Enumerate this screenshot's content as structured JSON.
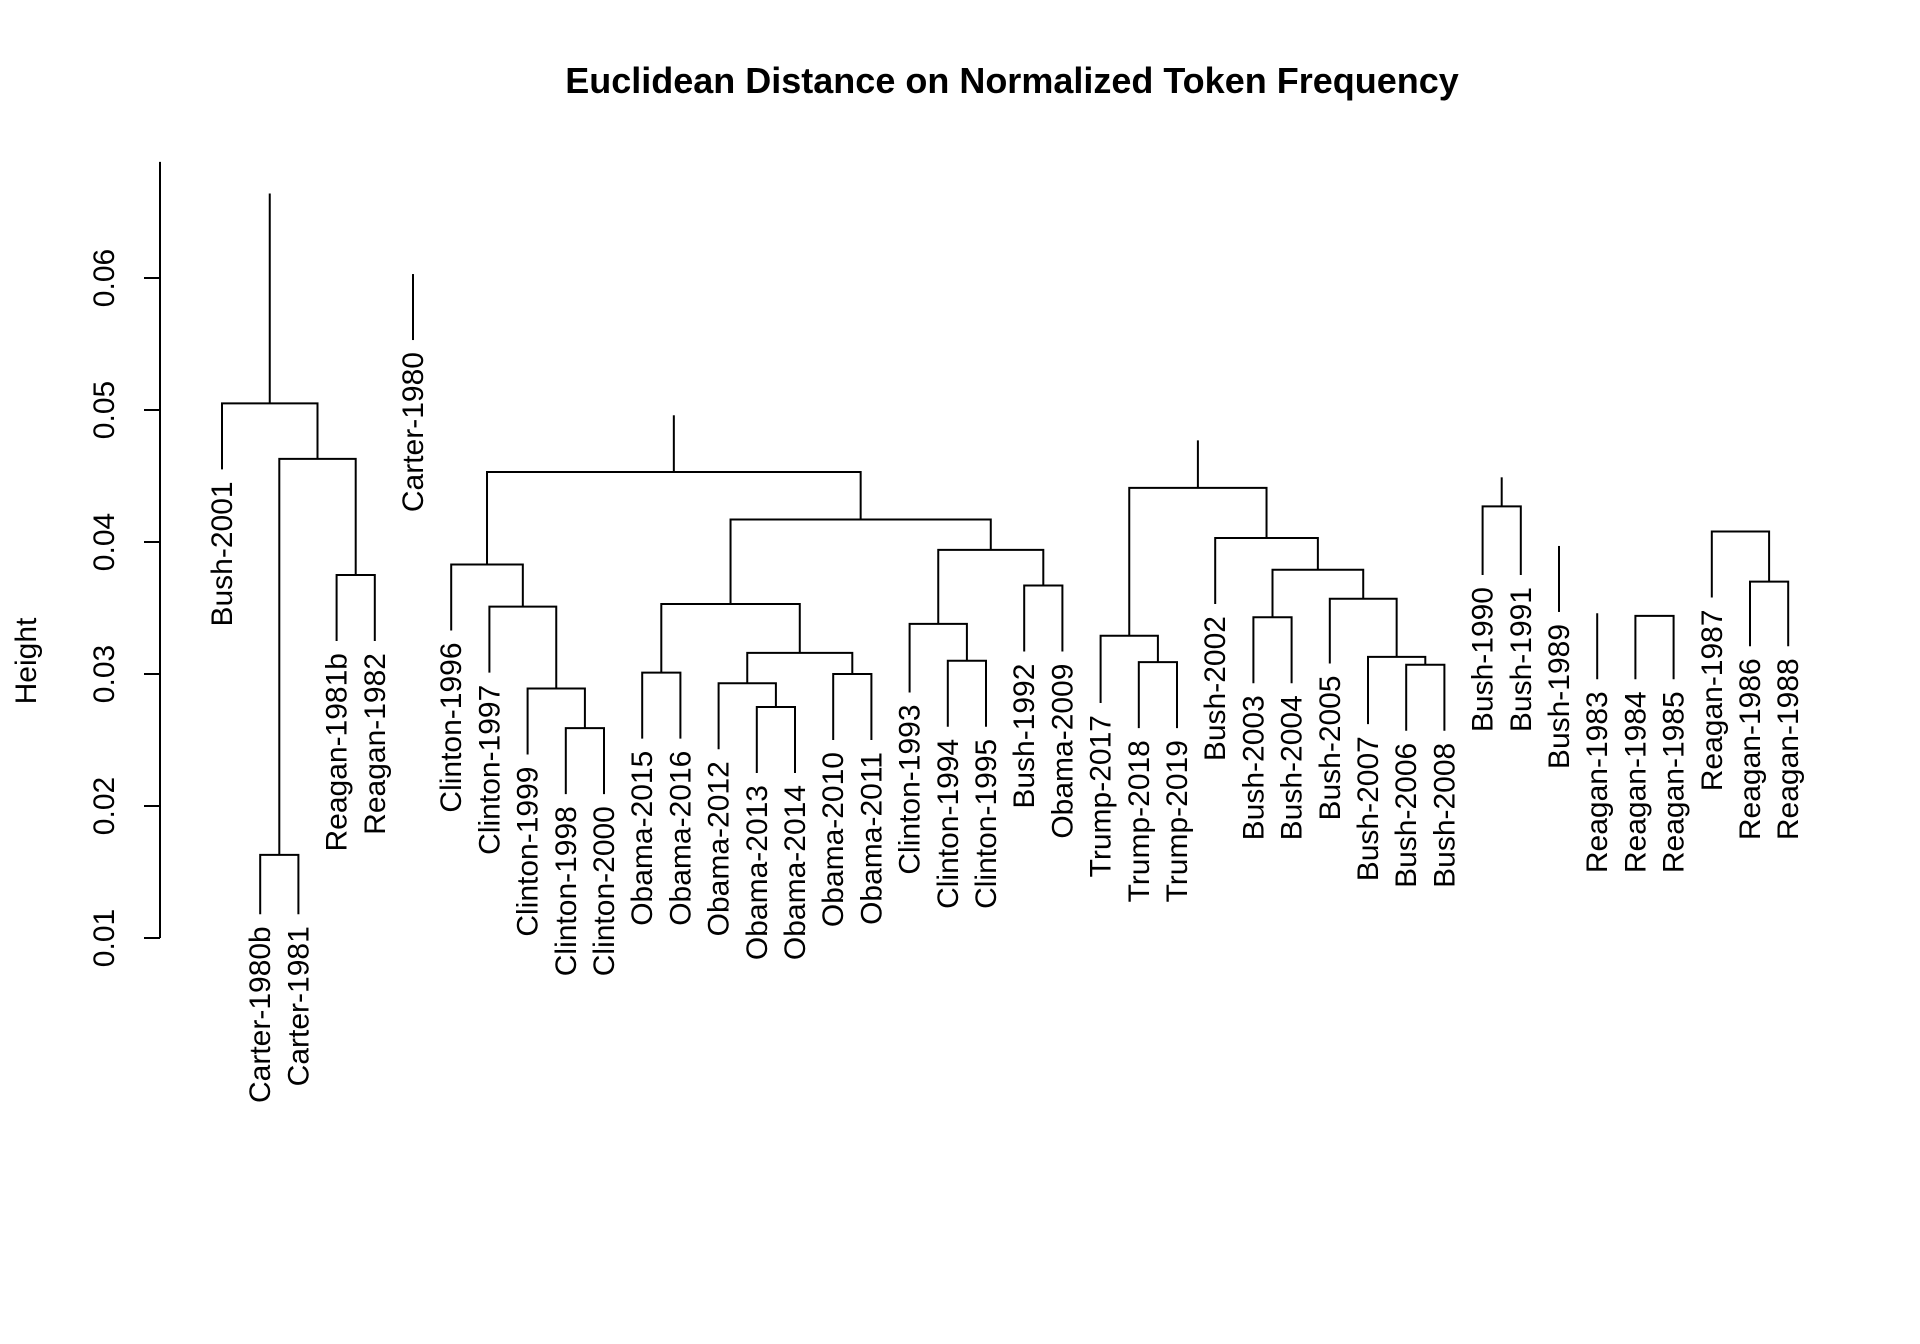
{
  "chart_data": {
    "type": "dendrogram",
    "title": "Euclidean Distance on Normalized Token Frequency",
    "xlabel": "",
    "ylabel": "Height",
    "ylim": [
      0.01,
      0.07
    ],
    "yticks": [
      "0.01",
      "0.02",
      "0.03",
      "0.04",
      "0.05",
      "0.06"
    ],
    "leaves": [
      {
        "label": "Bush-2001",
        "top": 0.0455
      },
      {
        "label": "Carter-1980b",
        "top": 0.0118
      },
      {
        "label": "Carter-1981",
        "top": 0.0118
      },
      {
        "label": "Reagan-1981b",
        "top": 0.0325
      },
      {
        "label": "Reagan-1982",
        "top": 0.0325
      },
      {
        "label": "Carter-1980",
        "top": 0.0553
      },
      {
        "label": "Clinton-1996",
        "top": 0.0333
      },
      {
        "label": "Clinton-1997",
        "top": 0.0301
      },
      {
        "label": "Clinton-1999",
        "top": 0.0239
      },
      {
        "label": "Clinton-1998",
        "top": 0.0209
      },
      {
        "label": "Clinton-2000",
        "top": 0.0209
      },
      {
        "label": "Obama-2015",
        "top": 0.0251
      },
      {
        "label": "Obama-2016",
        "top": 0.0251
      },
      {
        "label": "Obama-2012",
        "top": 0.0243
      },
      {
        "label": "Obama-2013",
        "top": 0.0225
      },
      {
        "label": "Obama-2014",
        "top": 0.0225
      },
      {
        "label": "Obama-2010",
        "top": 0.025
      },
      {
        "label": "Obama-2011",
        "top": 0.025
      },
      {
        "label": "Clinton-1993",
        "top": 0.0286
      },
      {
        "label": "Clinton-1994",
        "top": 0.026
      },
      {
        "label": "Clinton-1995",
        "top": 0.026
      },
      {
        "label": "Bush-1992",
        "top": 0.0317
      },
      {
        "label": "Obama-2009",
        "top": 0.0317
      },
      {
        "label": "Trump-2017",
        "top": 0.0278
      },
      {
        "label": "Trump-2018",
        "top": 0.0259
      },
      {
        "label": "Trump-2019",
        "top": 0.0259
      },
      {
        "label": "Bush-2002",
        "top": 0.0353
      },
      {
        "label": "Bush-2003",
        "top": 0.0293
      },
      {
        "label": "Bush-2004",
        "top": 0.0293
      },
      {
        "label": "Bush-2005",
        "top": 0.0308
      },
      {
        "label": "Bush-2007",
        "top": 0.0262
      },
      {
        "label": "Bush-2006",
        "top": 0.0257
      },
      {
        "label": "Bush-2008",
        "top": 0.0257
      },
      {
        "label": "Bush-1990",
        "top": 0.0375
      },
      {
        "label": "Bush-1991",
        "top": 0.0375
      },
      {
        "label": "Bush-1989",
        "top": 0.0347
      },
      {
        "label": "Reagan-1983",
        "top": 0.0296
      },
      {
        "label": "Reagan-1984",
        "top": 0.0296
      },
      {
        "label": "Reagan-1985",
        "top": 0.0296
      },
      {
        "label": "Reagan-1987",
        "top": 0.0358
      },
      {
        "label": "Reagan-1986",
        "top": 0.0321
      },
      {
        "label": "Reagan-1988",
        "top": 0.0321
      }
    ],
    "merges": [
      {
        "a": [
          1
        ],
        "b": [
          2
        ],
        "height": 0.0163
      },
      {
        "a": [
          3
        ],
        "b": [
          4
        ],
        "height": 0.0375
      },
      {
        "a": [
          1,
          2
        ],
        "b": [
          3,
          4
        ],
        "height": 0.0463
      },
      {
        "a": [
          0
        ],
        "b": [
          1,
          2,
          3,
          4
        ],
        "height": 0.0505
      },
      {
        "a": [
          9
        ],
        "b": [
          10
        ],
        "height": 0.0259
      },
      {
        "a": [
          8
        ],
        "b": [
          9,
          10
        ],
        "height": 0.0289
      },
      {
        "a": [
          7
        ],
        "b": [
          8,
          9,
          10
        ],
        "height": 0.0351
      },
      {
        "a": [
          6
        ],
        "b": [
          7,
          8,
          9,
          10
        ],
        "height": 0.0383
      },
      {
        "a": [
          11
        ],
        "b": [
          12
        ],
        "height": 0.0301
      },
      {
        "a": [
          14
        ],
        "b": [
          15
        ],
        "height": 0.0275
      },
      {
        "a": [
          13
        ],
        "b": [
          14,
          15
        ],
        "height": 0.0293
      },
      {
        "a": [
          16
        ],
        "b": [
          17
        ],
        "height": 0.03
      },
      {
        "a": [
          13,
          14,
          15
        ],
        "b": [
          16,
          17
        ],
        "height": 0.0316
      },
      {
        "a": [
          11,
          12
        ],
        "b": [
          13,
          14,
          15,
          16,
          17
        ],
        "height": 0.0353
      },
      {
        "a": [
          19
        ],
        "b": [
          20
        ],
        "height": 0.031
      },
      {
        "a": [
          18
        ],
        "b": [
          19,
          20
        ],
        "height": 0.0338
      },
      {
        "a": [
          21
        ],
        "b": [
          22
        ],
        "height": 0.0367
      },
      {
        "a": [
          18,
          19,
          20
        ],
        "b": [
          21,
          22
        ],
        "height": 0.0394
      },
      {
        "a": [
          11,
          12,
          13,
          14,
          15,
          16,
          17
        ],
        "b": [
          18,
          19,
          20,
          21,
          22
        ],
        "height": 0.0417
      },
      {
        "a": [
          6,
          7,
          8,
          9,
          10
        ],
        "b": [
          11,
          12,
          13,
          14,
          15,
          16,
          17,
          18,
          19,
          20,
          21,
          22
        ],
        "height": 0.0453
      },
      {
        "a": [
          24
        ],
        "b": [
          25
        ],
        "height": 0.0309
      },
      {
        "a": [
          23
        ],
        "b": [
          24,
          25
        ],
        "height": 0.0329
      },
      {
        "a": [
          27
        ],
        "b": [
          28
        ],
        "height": 0.0343
      },
      {
        "a": [
          31
        ],
        "b": [
          32
        ],
        "height": 0.0307
      },
      {
        "a": [
          30
        ],
        "b": [
          31,
          32
        ],
        "height": 0.0313
      },
      {
        "a": [
          29
        ],
        "b": [
          30,
          31,
          32
        ],
        "height": 0.0357
      },
      {
        "a": [
          27,
          28
        ],
        "b": [
          29,
          30,
          31,
          32
        ],
        "height": 0.0379
      },
      {
        "a": [
          26
        ],
        "b": [
          27,
          28,
          29,
          30,
          31,
          32
        ],
        "height": 0.0403
      },
      {
        "a": [
          23,
          24,
          25
        ],
        "b": [
          26,
          27,
          28,
          29,
          30,
          31,
          32
        ],
        "height": 0.0441
      },
      {
        "a": [
          33
        ],
        "b": [
          34
        ],
        "height": 0.0427
      },
      {
        "a": [
          36
        ],
        "b": [
          37,
          38
        ],
        "height": 0.0346
      },
      {
        "a": [
          37
        ],
        "b": [
          38
        ],
        "height": 0.0344
      },
      {
        "a": [
          35
        ],
        "b": [
          36,
          37,
          38
        ],
        "height": 0.0397
      },
      {
        "a": [
          40
        ],
        "b": [
          41
        ],
        "height": 0.037
      },
      {
        "a": [
          39
        ],
        "b": [
          40,
          41
        ],
        "height": 0.0408
      },
      {
        "a": [
          35,
          36,
          37,
          38
        ],
        "b": [
          39,
          40,
          41
        ],
        "height": 0.0429
      },
      {
        "a": [
          33,
          34
        ],
        "b": [
          35,
          36,
          37,
          38,
          39,
          40,
          41
        ],
        "height": 0.0449
      },
      {
        "a": [
          23,
          24,
          25,
          26,
          27,
          28,
          29,
          30,
          31,
          32
        ],
        "b": [
          33,
          34,
          35,
          36,
          37,
          38,
          39,
          40,
          41
        ],
        "height": 0.0477
      },
      {
        "a": [
          6,
          7,
          8,
          9,
          10,
          11,
          12,
          13,
          14,
          15,
          16,
          17,
          18,
          19,
          20,
          21,
          22
        ],
        "b": [
          23,
          24,
          25,
          26,
          27,
          28,
          29,
          30,
          31,
          32,
          33,
          34,
          35,
          36,
          37,
          38,
          39,
          40,
          41
        ],
        "height": 0.0496
      },
      {
        "a": [
          5
        ],
        "b": [
          6,
          7,
          8,
          9,
          10,
          11,
          12,
          13,
          14,
          15,
          16,
          17,
          18,
          19,
          20,
          21,
          22,
          23,
          24,
          25,
          26,
          27,
          28,
          29,
          30,
          31,
          32,
          33,
          34,
          35,
          36,
          37,
          38,
          39,
          40,
          41
        ],
        "height": 0.0603
      },
      {
        "a": [
          0,
          1,
          2,
          3,
          4
        ],
        "b": [
          5,
          6,
          7,
          8,
          9,
          10,
          11,
          12,
          13,
          14,
          15,
          16,
          17,
          18,
          19,
          20,
          21,
          22,
          23,
          24,
          25,
          26,
          27,
          28,
          29,
          30,
          31,
          32,
          33,
          34,
          35,
          36,
          37,
          38,
          39,
          40,
          41
        ],
        "height": 0.0664
      }
    ]
  }
}
